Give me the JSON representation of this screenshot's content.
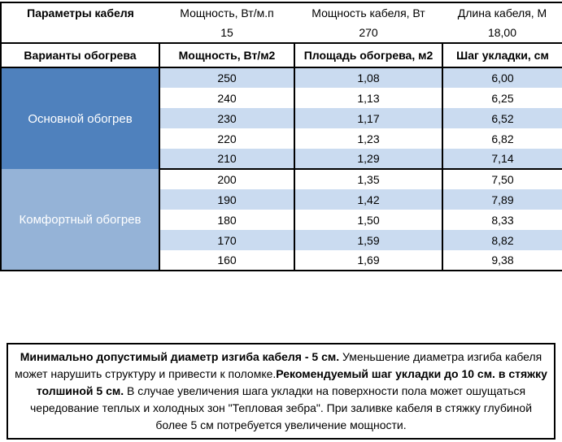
{
  "top": {
    "title": "Параметры кабеля",
    "headers": [
      "Мощность, Вт/м.п",
      "Мощность кабеля, Вт",
      "Длина кабеля, М"
    ],
    "values": [
      "15",
      "270",
      "18,00"
    ]
  },
  "table": {
    "headers": [
      "Варианты обогрева",
      "Мощность, Вт/м2",
      "Площадь обогрева, м2",
      "Шаг укладки, см"
    ],
    "groups": [
      {
        "name": "group-main-heating",
        "label": "Основной обогрев",
        "color": "#4F81BD",
        "rows": [
          [
            "250",
            "1,08",
            "6,00"
          ],
          [
            "240",
            "1,13",
            "6,25"
          ],
          [
            "230",
            "1,17",
            "6,52"
          ],
          [
            "220",
            "1,23",
            "6,82"
          ],
          [
            "210",
            "1,29",
            "7,14"
          ]
        ]
      },
      {
        "name": "group-comfort-heating",
        "label": "Комфортный обогрев",
        "color": "#95B3D7",
        "rows": [
          [
            "200",
            "1,35",
            "7,50"
          ],
          [
            "190",
            "1,42",
            "7,89"
          ],
          [
            "180",
            "1,50",
            "8,33"
          ],
          [
            "170",
            "1,59",
            "8,82"
          ],
          [
            "160",
            "1,69",
            "9,38"
          ]
        ]
      }
    ]
  },
  "note": {
    "segments": [
      {
        "bold": true,
        "text": "Минимально допустимый диаметр изгиба кабеля - 5 см."
      },
      {
        "bold": false,
        "text": "  Уменьшение диаметра изгиба кабеля может нарушить структуру и привести к поломке."
      },
      {
        "bold": true,
        "text": "Рекомендуемый шаг укладки до 10 см. в стяжку толшиной 5 см."
      },
      {
        "bold": false,
        "text": " В  случае увеличения шага укладки на поверхности пола может ошущаться чередование теплых и холодных зон \"Тепловая зебра\". При заливке кабеля в стяжку глубиной более 5 см потребуется увеличение мощности."
      }
    ]
  },
  "colors": {
    "group_main": "#4F81BD",
    "group_comfort": "#95B3D7",
    "stripe": "#CADBF0",
    "row_white": "#FFFFFF",
    "border": "#000000",
    "cell_text_light": "#FFFFFF"
  }
}
